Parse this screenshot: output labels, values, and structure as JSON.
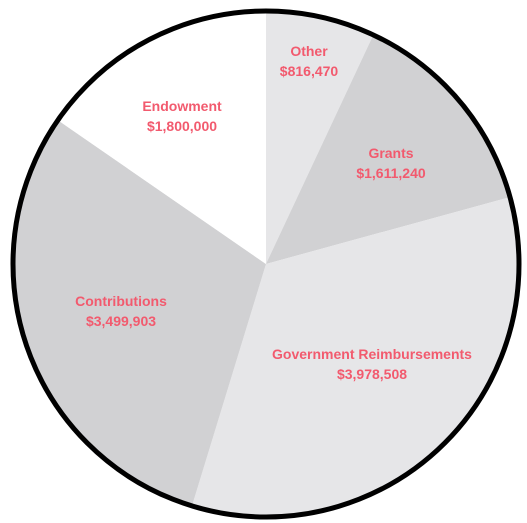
{
  "chart_data": {
    "type": "pie",
    "title": "",
    "start_angle_deg": 0,
    "direction": "clockwise",
    "slices": [
      {
        "name": "Other",
        "value_label": "$816,470",
        "value": 816470,
        "color": "#e6e6e8"
      },
      {
        "name": "Grants",
        "value_label": "$1,611,240",
        "value": 1611240,
        "color": "#d1d1d3"
      },
      {
        "name": "Government Reimbursements",
        "value_label": "$3,978,508",
        "value": 3978508,
        "color": "#e6e6e8"
      },
      {
        "name": "Contributions",
        "value_label": "$3,499,903",
        "value": 3499903,
        "color": "#d1d1d3"
      },
      {
        "name": "Endowment",
        "value_label": "$1,800,000",
        "value": 1800000,
        "color": "#ffffff"
      }
    ],
    "label_color": "#f25a6e",
    "outline_color": "#000000"
  }
}
